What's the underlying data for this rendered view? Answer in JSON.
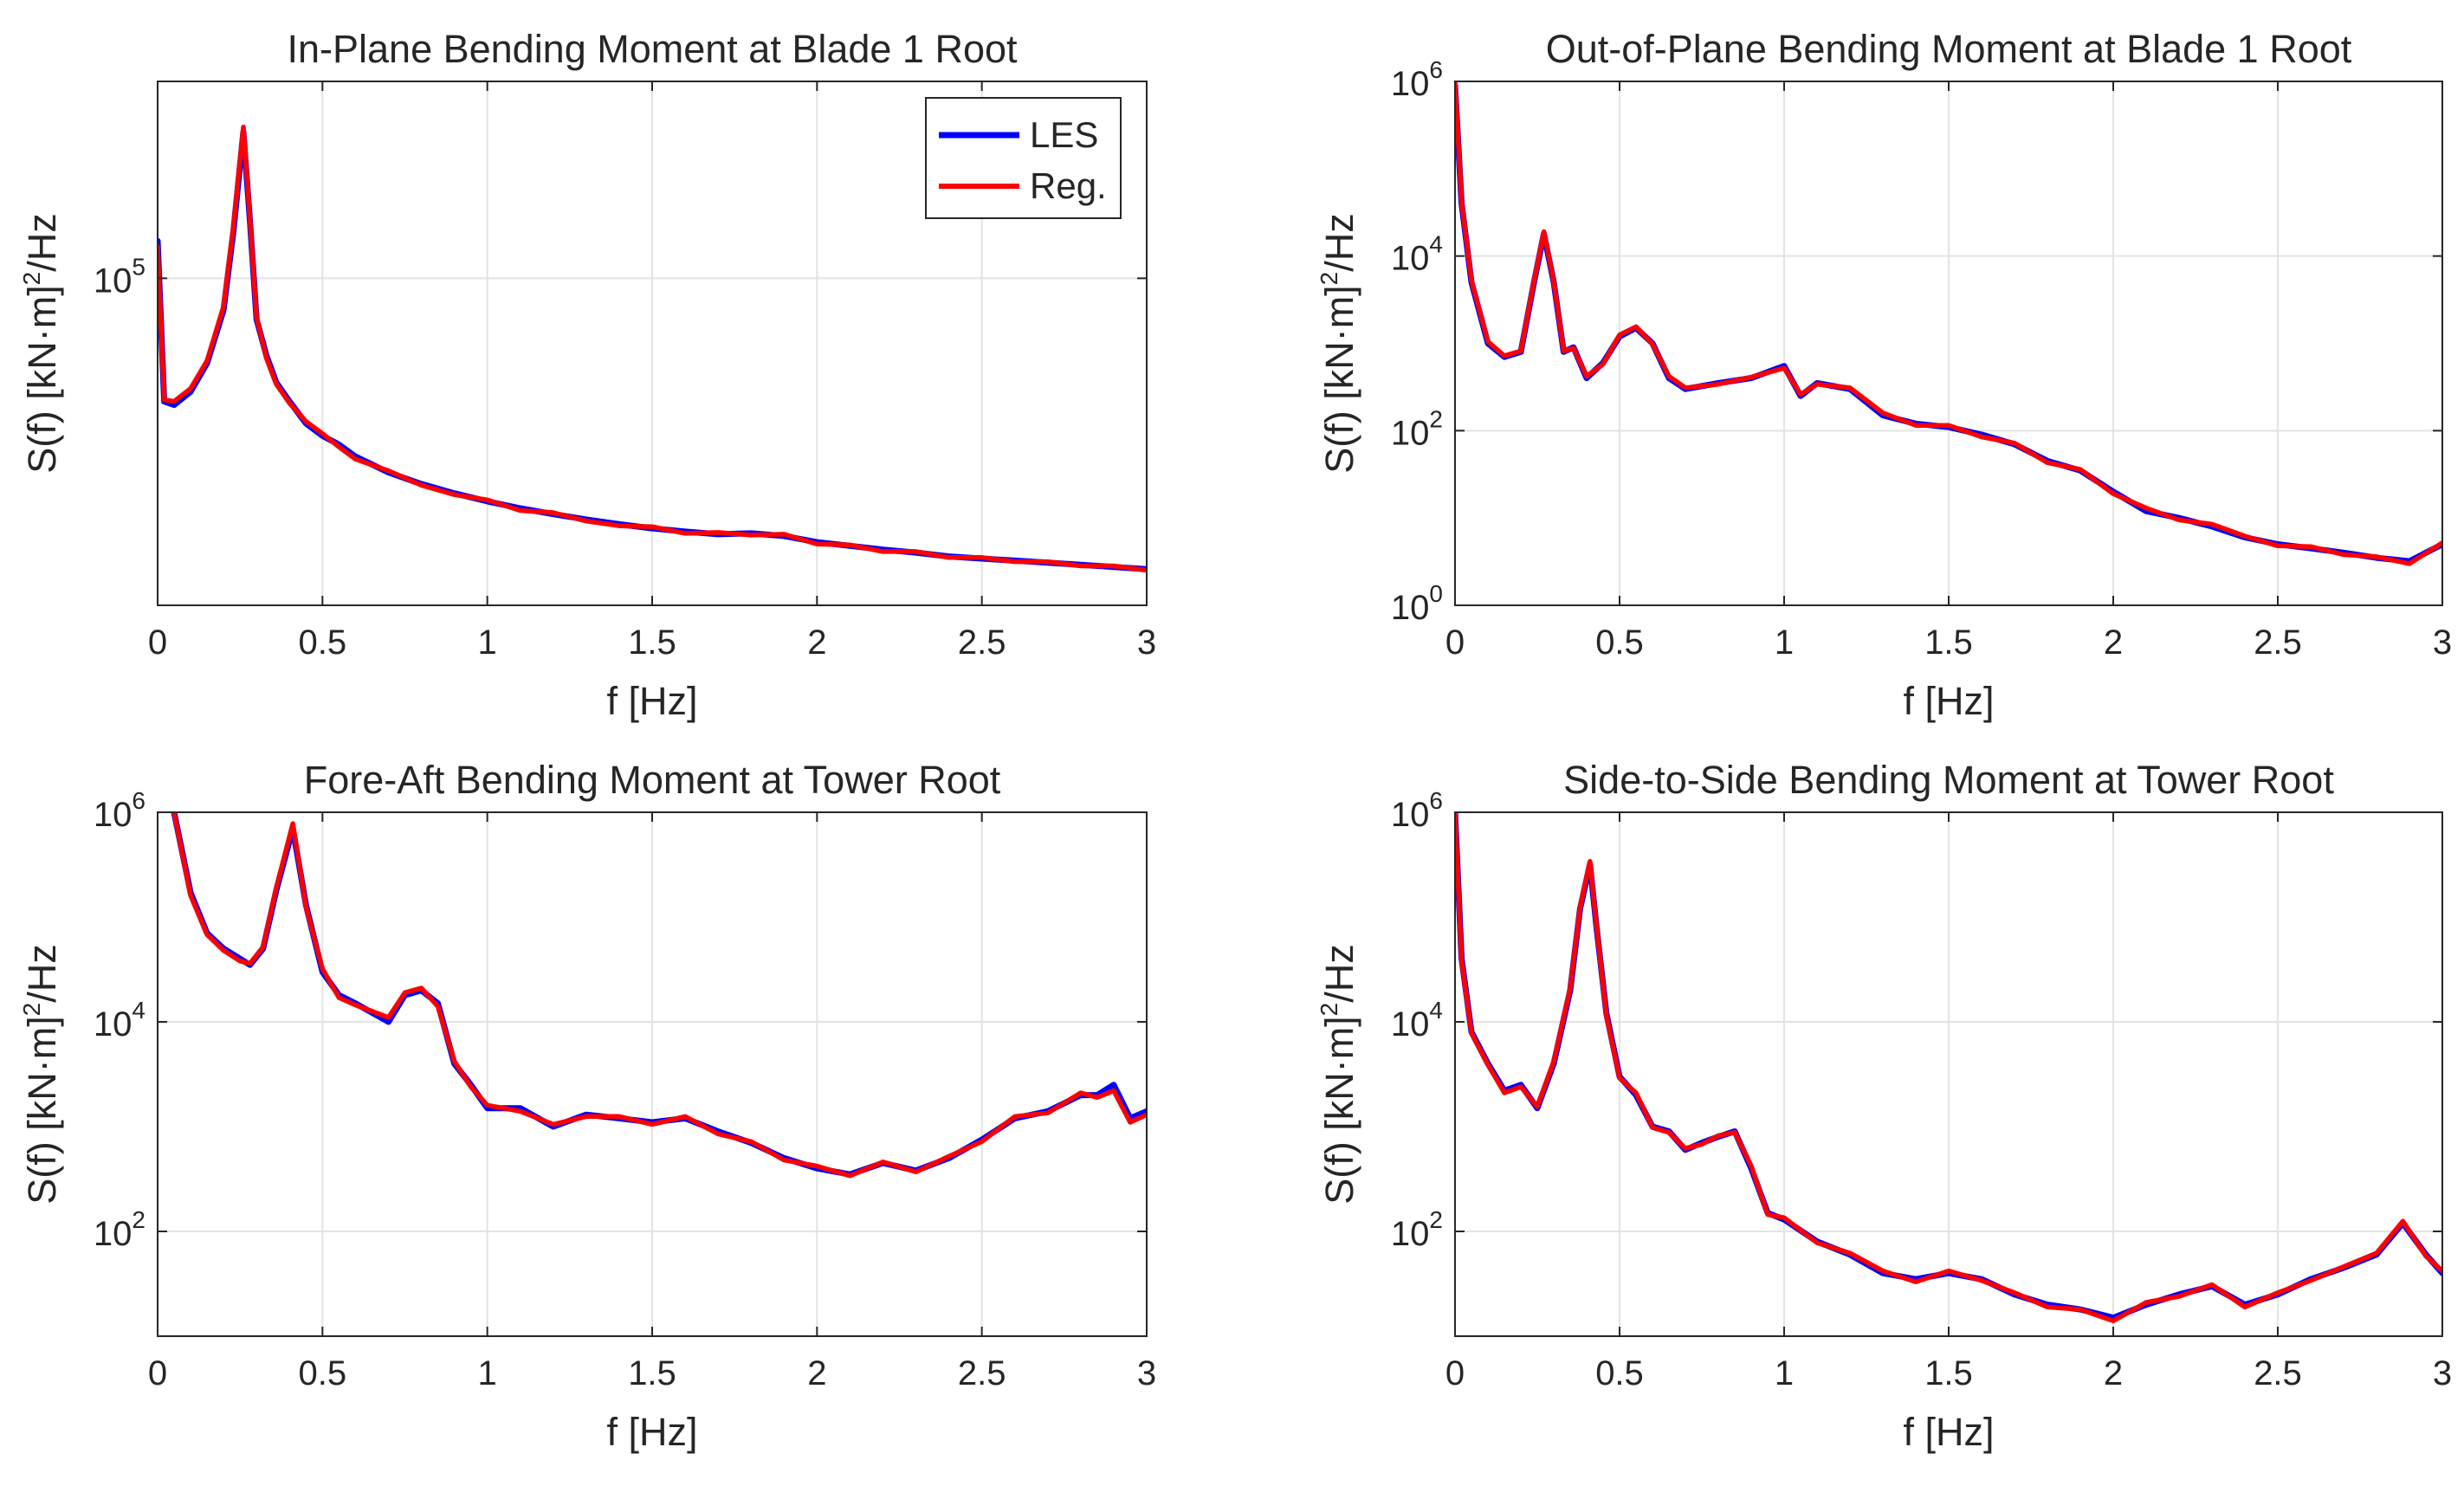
{
  "colors": {
    "les": "#0000ff",
    "reg": "#ff0000",
    "grid": "#e3e3e3",
    "axis": "#262626"
  },
  "legend": {
    "les": "LES",
    "reg": "Reg.",
    "location": "top-right of first panel"
  },
  "chart_data": [
    {
      "type": "line",
      "title": "In-Plane Bending Moment at Blade 1 Root",
      "xlabel": "f [Hz]",
      "ylabel": "S(f) [kN·m]2/Hz",
      "yscale": "log",
      "xlim": [
        0,
        3
      ],
      "ylim": [
        10000,
        400000
      ],
      "xticks": [
        0,
        0.5,
        1,
        1.5,
        2,
        2.5,
        3
      ],
      "xticklabels": [
        "0",
        "0.5",
        "1",
        "1.5",
        "2",
        "2.5",
        "3"
      ],
      "yticks": [
        {
          "value": 100000,
          "base": "10",
          "exp": "5"
        }
      ],
      "grid": true,
      "legend": true,
      "series": [
        {
          "name": "LES",
          "x": [
            0,
            0.02,
            0.05,
            0.1,
            0.15,
            0.2,
            0.23,
            0.26,
            0.28,
            0.3,
            0.33,
            0.36,
            0.4,
            0.45,
            0.5,
            0.55,
            0.6,
            0.7,
            0.8,
            0.9,
            1.0,
            1.1,
            1.2,
            1.3,
            1.4,
            1.5,
            1.6,
            1.7,
            1.8,
            1.9,
            2.0,
            2.1,
            2.2,
            2.3,
            2.4,
            2.5,
            2.6,
            2.7,
            2.8,
            2.9,
            3.0
          ],
          "values": [
            130000,
            42000,
            41000,
            45000,
            55000,
            80000,
            140000,
            280000,
            150000,
            75000,
            58000,
            48000,
            42000,
            36000,
            33000,
            31000,
            28500,
            25500,
            23500,
            22000,
            20800,
            19800,
            19000,
            18300,
            17700,
            17200,
            16800,
            16500,
            16600,
            16300,
            15600,
            15200,
            14800,
            14500,
            14100,
            13900,
            13700,
            13500,
            13300,
            13100,
            12900
          ]
        },
        {
          "name": "Reg.",
          "x": [
            0,
            0.02,
            0.05,
            0.1,
            0.15,
            0.2,
            0.23,
            0.26,
            0.28,
            0.3,
            0.33,
            0.36,
            0.4,
            0.45,
            0.5,
            0.55,
            0.6,
            0.7,
            0.8,
            0.9,
            1.0,
            1.1,
            1.2,
            1.3,
            1.4,
            1.5,
            1.6,
            1.7,
            1.8,
            1.9,
            2.0,
            2.1,
            2.2,
            2.3,
            2.4,
            2.5,
            2.6,
            2.7,
            2.8,
            2.9,
            3.0
          ],
          "values": [
            125000,
            42500,
            42000,
            46000,
            56000,
            82000,
            145000,
            290000,
            152000,
            76000,
            57000,
            47500,
            41500,
            36500,
            33500,
            30500,
            28000,
            25800,
            23300,
            21800,
            21000,
            19500,
            19200,
            18100,
            17500,
            17400,
            16600,
            16700,
            16400,
            16500,
            15400,
            15300,
            14600,
            14600,
            14000,
            14000,
            13600,
            13600,
            13200,
            13200,
            12800
          ]
        }
      ]
    },
    {
      "type": "line",
      "title": "Out-of-Plane Bending Moment at Blade 1 Root",
      "xlabel": "f [Hz]",
      "ylabel": "S(f) [kN·m]2/Hz",
      "yscale": "log",
      "xlim": [
        0,
        3
      ],
      "ylim": [
        1,
        1000000
      ],
      "xticks": [
        0,
        0.5,
        1,
        1.5,
        2,
        2.5,
        3
      ],
      "xticklabels": [
        "0",
        "0.5",
        "1",
        "1.5",
        "2",
        "2.5",
        "3"
      ],
      "yticks": [
        {
          "value": 1,
          "base": "10",
          "exp": "0"
        },
        {
          "value": 100,
          "base": "10",
          "exp": "2"
        },
        {
          "value": 10000,
          "base": "10",
          "exp": "4"
        },
        {
          "value": 1000000,
          "base": "10",
          "exp": "6"
        }
      ],
      "grid": true,
      "legend": false,
      "series": [
        {
          "name": "LES",
          "x": [
            0,
            0.02,
            0.05,
            0.1,
            0.15,
            0.2,
            0.24,
            0.27,
            0.3,
            0.33,
            0.36,
            0.4,
            0.45,
            0.5,
            0.55,
            0.6,
            0.65,
            0.7,
            0.8,
            0.9,
            1.0,
            1.05,
            1.1,
            1.2,
            1.3,
            1.4,
            1.5,
            1.6,
            1.7,
            1.8,
            1.9,
            2.0,
            2.1,
            2.2,
            2.3,
            2.4,
            2.5,
            2.6,
            2.7,
            2.8,
            2.9,
            3.0
          ],
          "values": [
            900000,
            40000,
            5000,
            1000,
            700,
            800,
            5000,
            18000,
            5000,
            800,
            900,
            400,
            600,
            1200,
            1500,
            1000,
            400,
            300,
            350,
            400,
            550,
            250,
            350,
            300,
            150,
            120,
            110,
            90,
            70,
            45,
            35,
            20,
            12,
            10,
            8,
            6,
            5,
            4.5,
            4,
            3.5,
            3.2,
            5
          ]
        },
        {
          "name": "Reg.",
          "x": [
            0,
            0.02,
            0.05,
            0.1,
            0.15,
            0.2,
            0.24,
            0.27,
            0.3,
            0.33,
            0.36,
            0.4,
            0.45,
            0.5,
            0.55,
            0.6,
            0.65,
            0.7,
            0.8,
            0.9,
            1.0,
            1.05,
            1.1,
            1.2,
            1.3,
            1.4,
            1.5,
            1.6,
            1.7,
            1.8,
            1.9,
            2.0,
            2.1,
            2.2,
            2.3,
            2.4,
            2.5,
            2.6,
            2.7,
            2.8,
            2.9,
            3.0
          ],
          "values": [
            1000000,
            42000,
            5200,
            1050,
            720,
            820,
            5200,
            19000,
            5100,
            820,
            880,
            420,
            580,
            1250,
            1550,
            980,
            420,
            310,
            340,
            410,
            520,
            260,
            340,
            310,
            160,
            115,
            115,
            85,
            72,
            43,
            36,
            19,
            13,
            9.5,
            8.5,
            6.2,
            4.8,
            4.7,
            3.8,
            3.6,
            3,
            5.2
          ]
        }
      ]
    },
    {
      "type": "line",
      "title": "Fore-Aft Bending Moment at Tower Root",
      "xlabel": "f [Hz]",
      "ylabel": "S(f) [kN·m]2/Hz",
      "yscale": "log",
      "xlim": [
        0,
        3
      ],
      "ylim": [
        10,
        1000000
      ],
      "xticks": [
        0,
        0.5,
        1,
        1.5,
        2,
        2.5,
        3
      ],
      "xticklabels": [
        "0",
        "0.5",
        "1",
        "1.5",
        "2",
        "2.5",
        "3"
      ],
      "yticks": [
        {
          "value": 100,
          "base": "10",
          "exp": "2"
        },
        {
          "value": 10000,
          "base": "10",
          "exp": "4"
        },
        {
          "value": 1000000,
          "base": "10",
          "exp": "6"
        }
      ],
      "grid": true,
      "legend": false,
      "series": [
        {
          "name": "LES",
          "x": [
            0.05,
            0.1,
            0.15,
            0.2,
            0.25,
            0.28,
            0.32,
            0.36,
            0.41,
            0.45,
            0.5,
            0.55,
            0.6,
            0.7,
            0.75,
            0.8,
            0.85,
            0.9,
            0.95,
            1.0,
            1.1,
            1.2,
            1.3,
            1.4,
            1.5,
            1.6,
            1.7,
            1.8,
            1.9,
            2.0,
            2.1,
            2.2,
            2.3,
            2.4,
            2.5,
            2.6,
            2.7,
            2.8,
            2.85,
            2.9,
            2.95,
            3.0
          ],
          "values": [
            1000000,
            170000,
            70000,
            50000,
            40000,
            35000,
            50000,
            180000,
            700000,
            130000,
            30000,
            18000,
            15000,
            10000,
            18000,
            20000,
            15000,
            4000,
            2500,
            1500,
            1500,
            1000,
            1300,
            1200,
            1100,
            1200,
            900,
            700,
            500,
            400,
            350,
            450,
            380,
            500,
            750,
            1200,
            1400,
            2000,
            2000,
            2500,
            1200,
            1400
          ]
        },
        {
          "name": "Reg.",
          "x": [
            0.05,
            0.1,
            0.15,
            0.2,
            0.25,
            0.28,
            0.32,
            0.36,
            0.41,
            0.45,
            0.5,
            0.55,
            0.6,
            0.7,
            0.75,
            0.8,
            0.85,
            0.9,
            0.95,
            1.0,
            1.1,
            1.2,
            1.3,
            1.4,
            1.5,
            1.6,
            1.7,
            1.8,
            1.9,
            2.0,
            2.1,
            2.2,
            2.3,
            2.4,
            2.5,
            2.6,
            2.7,
            2.8,
            2.85,
            2.9,
            2.95,
            3.0
          ],
          "values": [
            1000000,
            160000,
            68000,
            48000,
            38000,
            36000,
            52000,
            190000,
            780000,
            125000,
            32000,
            17000,
            14500,
            11000,
            19000,
            21000,
            14000,
            4200,
            2400,
            1600,
            1400,
            1050,
            1250,
            1250,
            1050,
            1250,
            850,
            720,
            480,
            420,
            340,
            460,
            370,
            520,
            720,
            1250,
            1350,
            2100,
            1900,
            2200,
            1100,
            1300
          ]
        }
      ]
    },
    {
      "type": "line",
      "title": "Side-to-Side Bending Moment at Tower Root",
      "xlabel": "f [Hz]",
      "ylabel": "S(f) [kN·m]2/Hz",
      "yscale": "log",
      "xlim": [
        0,
        3
      ],
      "ylim": [
        10,
        1000000
      ],
      "xticks": [
        0,
        0.5,
        1,
        1.5,
        2,
        2.5,
        3
      ],
      "xticklabels": [
        "0",
        "0.5",
        "1",
        "1.5",
        "2",
        "2.5",
        "3"
      ],
      "yticks": [
        {
          "value": 100,
          "base": "10",
          "exp": "2"
        },
        {
          "value": 10000,
          "base": "10",
          "exp": "4"
        },
        {
          "value": 1000000,
          "base": "10",
          "exp": "6"
        }
      ],
      "grid": true,
      "legend": false,
      "series": [
        {
          "name": "LES",
          "x": [
            0,
            0.02,
            0.05,
            0.1,
            0.15,
            0.2,
            0.25,
            0.3,
            0.35,
            0.38,
            0.41,
            0.43,
            0.46,
            0.5,
            0.55,
            0.6,
            0.65,
            0.7,
            0.75,
            0.8,
            0.85,
            0.9,
            0.95,
            1.0,
            1.1,
            1.2,
            1.3,
            1.4,
            1.5,
            1.6,
            1.7,
            1.8,
            1.9,
            2.0,
            2.1,
            2.2,
            2.3,
            2.4,
            2.5,
            2.6,
            2.7,
            2.8,
            2.88,
            2.95,
            3.0
          ],
          "values": [
            1000000,
            40000,
            8000,
            4000,
            2200,
            2500,
            1500,
            4000,
            20000,
            120000,
            320000,
            80000,
            12000,
            3000,
            2000,
            1000,
            900,
            600,
            700,
            800,
            900,
            400,
            150,
            130,
            80,
            60,
            40,
            35,
            40,
            35,
            25,
            20,
            18,
            15,
            20,
            25,
            30,
            20,
            25,
            35,
            45,
            60,
            120,
            60,
            40
          ]
        },
        {
          "name": "Reg.",
          "x": [
            0,
            0.02,
            0.05,
            0.1,
            0.15,
            0.2,
            0.25,
            0.3,
            0.35,
            0.38,
            0.41,
            0.43,
            0.46,
            0.5,
            0.55,
            0.6,
            0.65,
            0.7,
            0.75,
            0.8,
            0.85,
            0.9,
            0.95,
            1.0,
            1.1,
            1.2,
            1.3,
            1.4,
            1.5,
            1.6,
            1.7,
            1.8,
            1.9,
            2.0,
            2.1,
            2.2,
            2.3,
            2.4,
            2.5,
            2.6,
            2.7,
            2.8,
            2.88,
            2.95,
            3.0
          ],
          "values": [
            1000000,
            38000,
            7800,
            3900,
            2100,
            2400,
            1550,
            4200,
            21000,
            125000,
            340000,
            82000,
            11500,
            2900,
            2100,
            980,
            880,
            620,
            680,
            820,
            880,
            420,
            145,
            135,
            78,
            62,
            42,
            33,
            42,
            34,
            26,
            19,
            18,
            14,
            21,
            24,
            31,
            19,
            26,
            34,
            46,
            62,
            125,
            58,
            42
          ]
        }
      ]
    }
  ]
}
